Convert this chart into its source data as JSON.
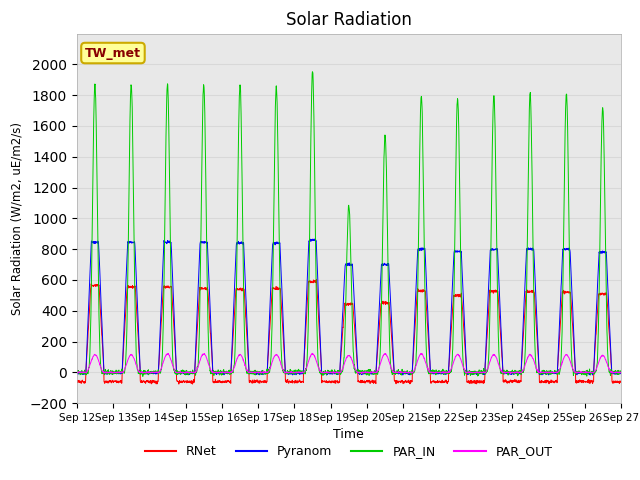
{
  "title": "Solar Radiation",
  "ylabel": "Solar Radiation (W/m2, uE/m2/s)",
  "xlabel": "Time",
  "station_label": "TW_met",
  "ylim": [
    -200,
    2200
  ],
  "yticks": [
    -200,
    0,
    200,
    400,
    600,
    800,
    1000,
    1200,
    1400,
    1600,
    1800,
    2000
  ],
  "xtick_labels": [
    "Sep 12",
    "Sep 13",
    "Sep 14",
    "Sep 15",
    "Sep 16",
    "Sep 17",
    "Sep 18",
    "Sep 19",
    "Sep 20",
    "Sep 21",
    "Sep 22",
    "Sep 23",
    "Sep 24",
    "Sep 25",
    "Sep 26",
    "Sep 27"
  ],
  "colors": {
    "RNet": "#ff0000",
    "Pyranom": "#0000ff",
    "PAR_IN": "#00cc00",
    "PAR_OUT": "#ff00ff"
  },
  "grid_color": "#d8d8d8",
  "background_color": "#e8e8e8",
  "station_box_facecolor": "#ffff99",
  "station_box_edgecolor": "#ccaa00",
  "par_in_peaks": [
    1870,
    1870,
    1870,
    1870,
    1870,
    1860,
    1960,
    1080,
    1540,
    1800,
    1780,
    1800,
    1810,
    1810,
    1720
  ],
  "pyranom_peaks": [
    845,
    845,
    845,
    845,
    840,
    840,
    860,
    700,
    700,
    800,
    785,
    800,
    800,
    800,
    780
  ],
  "rnet_peaks": [
    565,
    555,
    555,
    545,
    540,
    545,
    590,
    445,
    450,
    530,
    500,
    525,
    525,
    520,
    510
  ],
  "par_out_peaks": [
    115,
    115,
    120,
    120,
    115,
    115,
    120,
    110,
    120,
    120,
    115,
    115,
    115,
    115,
    110
  ],
  "rnet_night": -60,
  "pyranom_night": -5,
  "par_in_night": 0,
  "par_out_night": 0
}
